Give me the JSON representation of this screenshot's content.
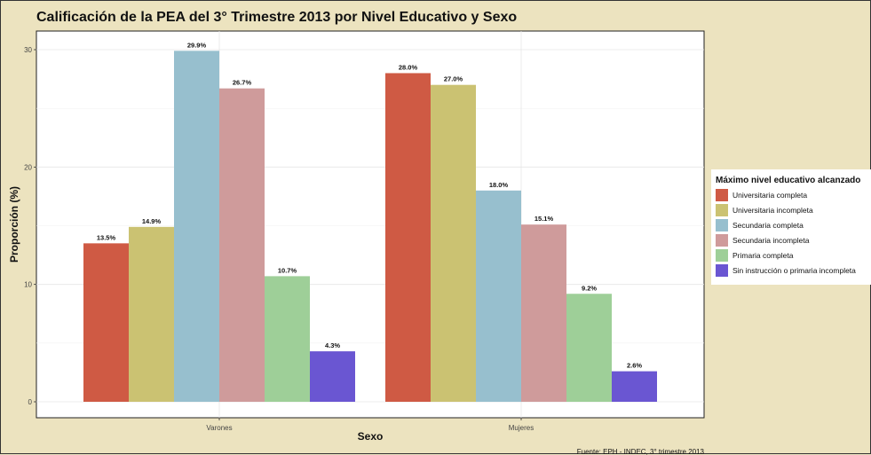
{
  "chart_data": {
    "type": "bar",
    "title": "Calificación de la PEA del 3° Trimestre 2013 por Nivel Educativo y Sexo",
    "xlabel": "Sexo",
    "ylabel": "Proporción (%)",
    "categories": [
      "Varones",
      "Mujeres"
    ],
    "ylim": [
      0,
      30
    ],
    "yticks": [
      0,
      10,
      20,
      30
    ],
    "grid": true,
    "legend_title": "Máximo nivel educativo alcanzado",
    "legend_position": "right",
    "caption": "Fuente: EPH - INDEC, 3° trimestre 2013",
    "series": [
      {
        "name": "Universitaria completa",
        "color": "#cf5a44",
        "values": [
          13.5,
          28.0
        ],
        "labels": [
          "13.5%",
          "28.0%"
        ]
      },
      {
        "name": "Universitaria incompleta",
        "color": "#cbc272",
        "values": [
          14.9,
          27.0
        ],
        "labels": [
          "14.9%",
          "27.0%"
        ]
      },
      {
        "name": "Secundaria completa",
        "color": "#97bfce",
        "values": [
          29.9,
          18.0
        ],
        "labels": [
          "29.9%",
          "18.0%"
        ]
      },
      {
        "name": "Secundaria incompleta",
        "color": "#cf9b9b",
        "values": [
          26.7,
          15.1
        ],
        "labels": [
          "26.7%",
          "15.1%"
        ]
      },
      {
        "name": "Primaria completa",
        "color": "#9ecf98",
        "values": [
          10.7,
          9.2
        ],
        "labels": [
          "10.7%",
          "9.2%"
        ]
      },
      {
        "name": "Sin instrucción o primaria incompleta",
        "color": "#6a56d2",
        "values": [
          4.3,
          2.6
        ],
        "labels": [
          "4.3%",
          "2.6%"
        ]
      }
    ]
  }
}
